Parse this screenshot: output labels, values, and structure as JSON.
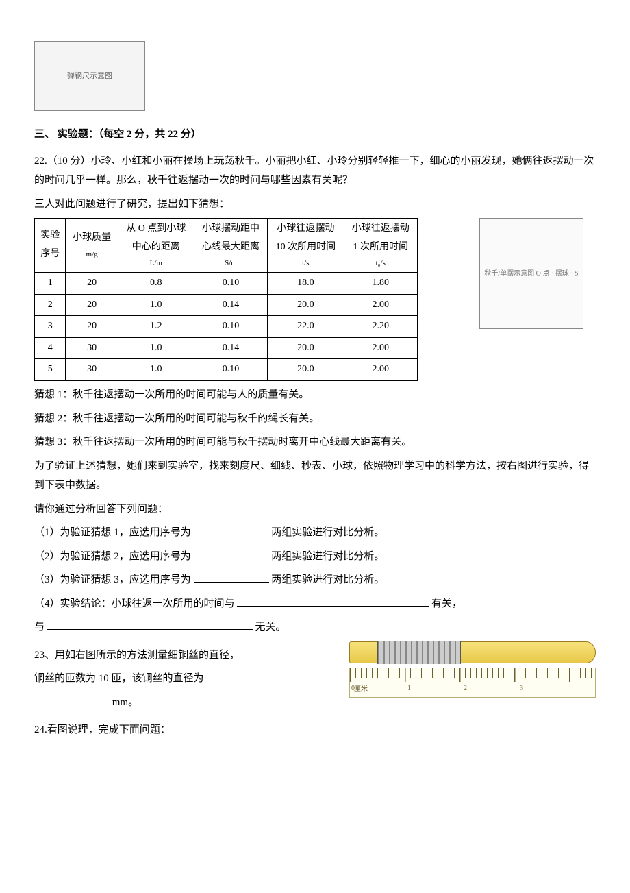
{
  "topFigure": {
    "caption": "弹钢尺示意图"
  },
  "section3": {
    "heading": "三、 实验题：（每空 2 分，共 22 分）",
    "q22": {
      "lead": "22.（10 分）小玲、小红和小丽在操场上玩荡秋千。小丽把小红、小玲分别轻轻推一下，细心的小丽发现，她俩往返摆动一次的时间几乎一样。那么，秋千往返摆动一次的时间与哪些因素有关呢？",
      "pre": "三人对此问题进行了研究，提出如下猜想：",
      "table": {
        "headers": {
          "c1a": "实验",
          "c1b": "序号",
          "c2a": "小球质量",
          "c2b": "m/g",
          "c3a": "从 O 点到小球",
          "c3b": "中心的距离",
          "c3c": "L/m",
          "c4a": "小球摆动距中",
          "c4b": "心线最大距离",
          "c4c": "S/m",
          "c5a": "小球往返摆动",
          "c5b": "10 次所用时间",
          "c5c": "t/s",
          "c6a": "小球往返摆动",
          "c6b": "1 次所用时间",
          "c6c": "t₀/s"
        },
        "rows": [
          {
            "n": "1",
            "m": "20",
            "L": "0.8",
            "S": "0.10",
            "t": "18.0",
            "t0": "1.80"
          },
          {
            "n": "2",
            "m": "20",
            "L": "1.0",
            "S": "0.14",
            "t": "20.0",
            "t0": "2.00"
          },
          {
            "n": "3",
            "m": "20",
            "L": "1.2",
            "S": "0.10",
            "t": "22.0",
            "t0": "2.20"
          },
          {
            "n": "4",
            "m": "30",
            "L": "1.0",
            "S": "0.14",
            "t": "20.0",
            "t0": "2.00"
          },
          {
            "n": "5",
            "m": "30",
            "L": "1.0",
            "S": "0.10",
            "t": "20.0",
            "t0": "2.00"
          }
        ]
      },
      "hyp1": "猜想 1：秋千往返摆动一次所用的时间可能与人的质量有关。",
      "hyp2": "猜想 2：秋千往返摆动一次所用的时间可能与秋千的绳长有关。",
      "hyp3": "猜想 3：秋千往返摆动一次所用的时间可能与秋千摆动时离开中心线最大距离有关。",
      "method": "为了验证上述猜想，她们来到实验室，找来刻度尺、细线、秒表、小球，依照物理学习中的科学方法，按右图进行实验，得到下表中数据。",
      "analyzeLead": "请你通过分析回答下列问题：",
      "p1a": "（1）为验证猜想 1，应选用序号为",
      "p1b": "两组实验进行对比分析。",
      "p2a": "（2）为验证猜想 2，应选用序号为",
      "p2b": "两组实验进行对比分析。",
      "p3a": "（3）为验证猜想 3，应选用序号为",
      "p3b": "两组实验进行对比分析。",
      "p4a": "（4）实验结论：小球往返一次所用的时间与",
      "p4b": "有关，",
      "p4c": "与",
      "p4d": "无关。",
      "swingFigCaption": "秋千/单摆示意图\nO 点 · 摆球 · S"
    },
    "q23": {
      "text1": "23、用如右图所示的方法测量细铜丝的直径，",
      "text2": "铜丝的匝数为 10 匝，该铜丝的直径为",
      "unit": "mm。",
      "ruler": {
        "marks": [
          "0",
          "1",
          "2",
          "3"
        ],
        "unitLabel": "厘米"
      }
    },
    "q24": {
      "text": "24.看图说理，完成下面问题："
    }
  }
}
